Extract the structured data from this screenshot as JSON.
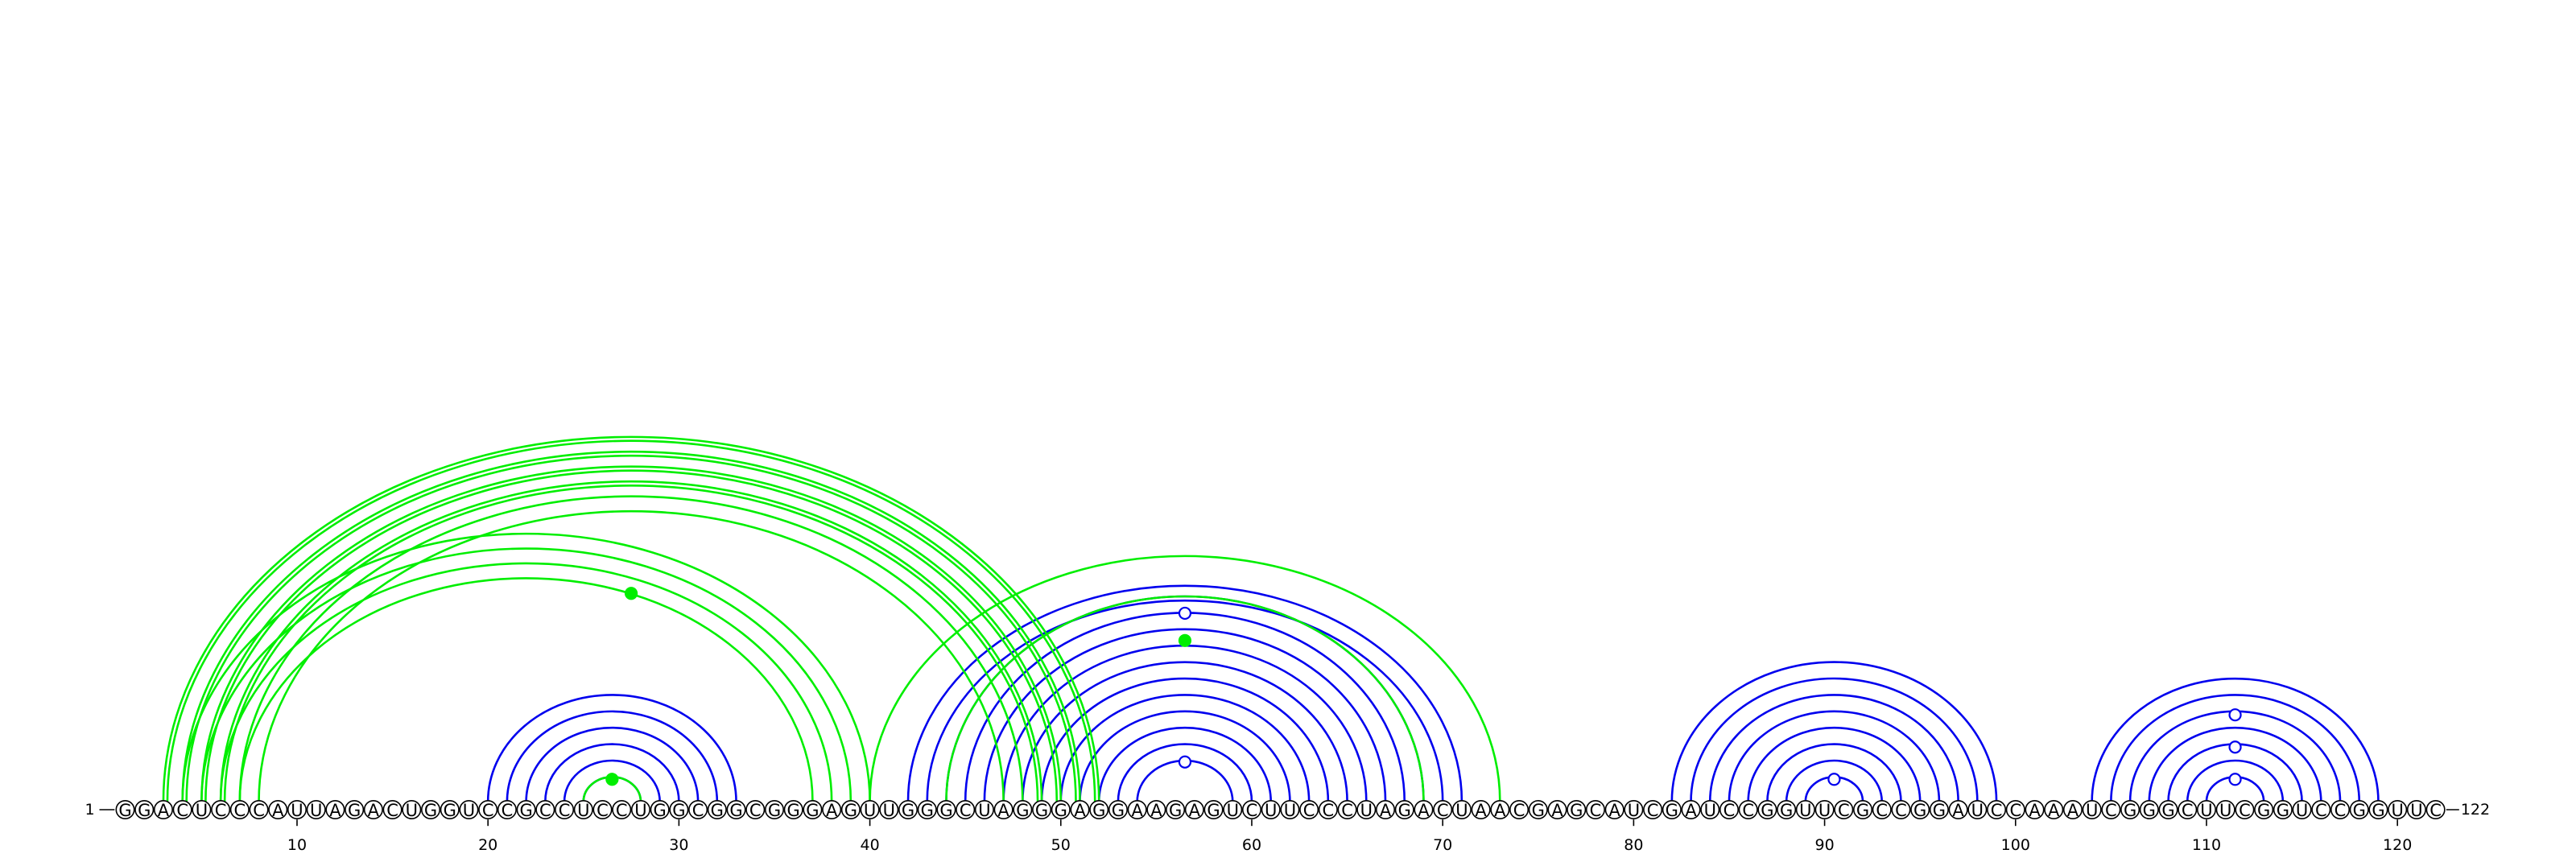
{
  "sequence": "GGACUCCCAUUAGACUGGUCCGCCUCCUGGCGGCGGGAGUUGGGCUAGGGAGGAAGAGUCUUCCCUAGACUAACGAGCAUCGAUCCGGUUCGCCGGAUCCAAAUCGGGCUUCGGUCCGGUUC",
  "start_label": "1",
  "end_label": "122",
  "ticks": [
    10,
    20,
    30,
    40,
    50,
    60,
    70,
    80,
    90,
    100,
    110,
    120
  ],
  "colors": {
    "blue": "#0000ee",
    "green": "#00ee00"
  },
  "arc_sets": [
    {
      "name": "blue",
      "color": "#0000ee",
      "pairs": [
        [
          20,
          33
        ],
        [
          21,
          32
        ],
        [
          22,
          31
        ],
        [
          23,
          30
        ],
        [
          24,
          29
        ],
        [
          25,
          28
        ],
        [
          42,
          71
        ],
        [
          43,
          70
        ],
        [
          44,
          69
        ],
        [
          45,
          68
        ],
        [
          46,
          67
        ],
        [
          47,
          66
        ],
        [
          48,
          65
        ],
        [
          49,
          64
        ],
        [
          50,
          63
        ],
        [
          51,
          62
        ],
        [
          52,
          61
        ],
        [
          53,
          60
        ],
        [
          54,
          59
        ],
        [
          82,
          99
        ],
        [
          83,
          98
        ],
        [
          84,
          97
        ],
        [
          85,
          96
        ],
        [
          86,
          95
        ],
        [
          87,
          94
        ],
        [
          88,
          93
        ],
        [
          89,
          92
        ],
        [
          104,
          119
        ],
        [
          105,
          118
        ],
        [
          106,
          117
        ],
        [
          107,
          116
        ],
        [
          108,
          115
        ],
        [
          109,
          114
        ],
        [
          110,
          113
        ]
      ],
      "markers": [
        {
          "pos": 56.5,
          "level": 7.6,
          "filled": false
        },
        {
          "pos": 56.5,
          "level": 1.6,
          "filled": false
        },
        {
          "pos": 90.5,
          "level": 0.9,
          "filled": false
        },
        {
          "pos": 111.5,
          "level": 3.5,
          "filled": false
        },
        {
          "pos": 111.5,
          "level": 2.2,
          "filled": false
        },
        {
          "pos": 111.5,
          "level": 0.9,
          "filled": false
        }
      ]
    },
    {
      "name": "green",
      "color": "#00ee00",
      "pairs": [
        [
          3,
          52
        ],
        [
          4,
          51
        ],
        [
          5,
          50
        ],
        [
          6,
          49
        ],
        [
          7,
          48
        ],
        [
          8,
          47
        ],
        [
          4,
          40
        ],
        [
          5,
          39
        ],
        [
          6,
          38
        ],
        [
          7,
          37
        ],
        [
          3,
          52
        ],
        [
          4,
          51
        ],
        [
          5,
          50
        ],
        [
          6,
          49
        ],
        [
          25,
          28
        ],
        [
          40,
          73
        ],
        [
          44,
          69
        ]
      ],
      "markers": [
        {
          "pos": 27.5,
          "level": 8.4,
          "filled": true
        },
        {
          "pos": 26.5,
          "level": 0.9,
          "filled": true
        },
        {
          "pos": 56.5,
          "level": 6.5,
          "filled": true
        }
      ]
    }
  ]
}
